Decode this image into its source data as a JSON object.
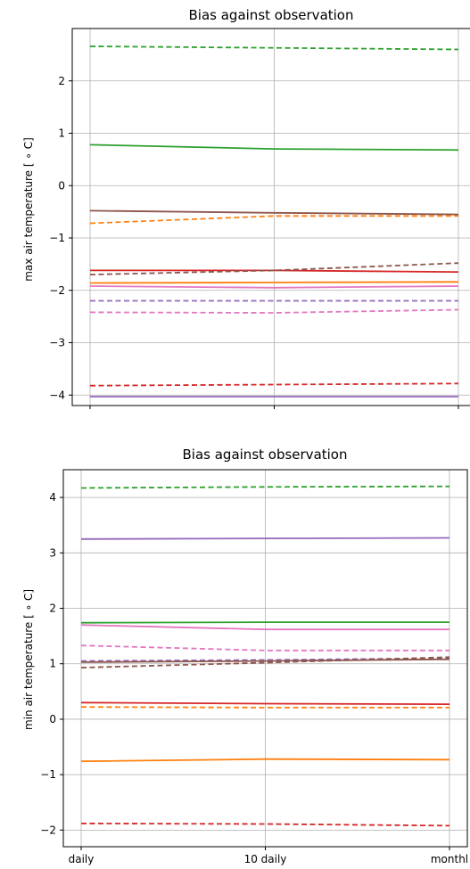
{
  "chart_data": [
    {
      "type": "line",
      "title": "Bias against observation",
      "xlabel": "",
      "ylabel": "max air temperature [$^\\circ$C]",
      "ylabel_display": "max air temperature [ ∘ C]",
      "categories": [
        "daily",
        "10 daily",
        "monthly"
      ],
      "show_xticklabels": false,
      "yticks": [
        -4,
        -3,
        -2,
        -1,
        0,
        1,
        2
      ],
      "ytick_labels": [
        "−4",
        "−3",
        "−2",
        "−1",
        "0",
        "1",
        "2"
      ],
      "ylim": [
        -4.2,
        3.0
      ],
      "grid": true,
      "series": [
        {
          "color": "#2ca02c",
          "linestyle": "dashed",
          "values": [
            2.66,
            2.63,
            2.6
          ]
        },
        {
          "color": "#2ca02c",
          "linestyle": "solid",
          "values": [
            0.78,
            0.7,
            0.68
          ]
        },
        {
          "color": "#8c564b",
          "linestyle": "solid",
          "values": [
            -0.48,
            -0.52,
            -0.55
          ]
        },
        {
          "color": "#ff7f0e",
          "linestyle": "dashed",
          "values": [
            -0.72,
            -0.58,
            -0.58
          ]
        },
        {
          "color": "#d62728",
          "linestyle": "solid",
          "values": [
            -1.62,
            -1.62,
            -1.65
          ]
        },
        {
          "color": "#8c564b",
          "linestyle": "dashed",
          "values": [
            -1.7,
            -1.62,
            -1.48
          ]
        },
        {
          "color": "#ff7f0e",
          "linestyle": "solid",
          "values": [
            -1.86,
            -1.85,
            -1.84
          ]
        },
        {
          "color": "#e377c2",
          "linestyle": "solid",
          "values": [
            -1.92,
            -1.95,
            -1.92
          ]
        },
        {
          "color": "#9467bd",
          "linestyle": "dashed",
          "values": [
            -2.2,
            -2.2,
            -2.2
          ]
        },
        {
          "color": "#e377c2",
          "linestyle": "dashed",
          "values": [
            -2.42,
            -2.43,
            -2.37
          ]
        },
        {
          "color": "#d62728",
          "linestyle": "dashed",
          "values": [
            -3.82,
            -3.8,
            -3.78
          ]
        },
        {
          "color": "#9467bd",
          "linestyle": "solid",
          "values": [
            -4.03,
            -4.03,
            -4.03
          ]
        }
      ]
    },
    {
      "type": "line",
      "title": "Bias against observation",
      "xlabel": "",
      "ylabel": "min air temperature [$^\\circ$C]",
      "ylabel_display": "min air temperature [ ∘ C]",
      "categories": [
        "daily",
        "10 daily",
        "monthl"
      ],
      "show_xticklabels": true,
      "yticks": [
        -2,
        -1,
        0,
        1,
        2,
        3,
        4
      ],
      "ytick_labels": [
        "−2",
        "−1",
        "0",
        "1",
        "2",
        "3",
        "4"
      ],
      "ylim": [
        -2.3,
        4.5
      ],
      "grid": true,
      "series": [
        {
          "color": "#2ca02c",
          "linestyle": "dashed",
          "values": [
            4.17,
            4.19,
            4.2
          ]
        },
        {
          "color": "#9467bd",
          "linestyle": "solid",
          "values": [
            3.25,
            3.26,
            3.27
          ]
        },
        {
          "color": "#2ca02c",
          "linestyle": "solid",
          "values": [
            1.74,
            1.75,
            1.75
          ]
        },
        {
          "color": "#e377c2",
          "linestyle": "solid",
          "values": [
            1.7,
            1.62,
            1.62
          ]
        },
        {
          "color": "#e377c2",
          "linestyle": "dashed",
          "values": [
            1.33,
            1.24,
            1.24
          ]
        },
        {
          "color": "#9467bd",
          "linestyle": "dashed",
          "values": [
            1.05,
            1.07,
            1.1
          ]
        },
        {
          "color": "#8c564b",
          "linestyle": "solid",
          "values": [
            1.03,
            1.05,
            1.08
          ]
        },
        {
          "color": "#8c564b",
          "linestyle": "dashed",
          "values": [
            0.93,
            1.02,
            1.12
          ]
        },
        {
          "color": "#d62728",
          "linestyle": "solid",
          "values": [
            0.3,
            0.28,
            0.27
          ]
        },
        {
          "color": "#ff7f0e",
          "linestyle": "dashed",
          "values": [
            0.22,
            0.21,
            0.21
          ]
        },
        {
          "color": "#ff7f0e",
          "linestyle": "solid",
          "values": [
            -0.76,
            -0.72,
            -0.73
          ]
        },
        {
          "color": "#d62728",
          "linestyle": "dashed",
          "values": [
            -1.88,
            -1.89,
            -1.92
          ]
        }
      ]
    }
  ]
}
